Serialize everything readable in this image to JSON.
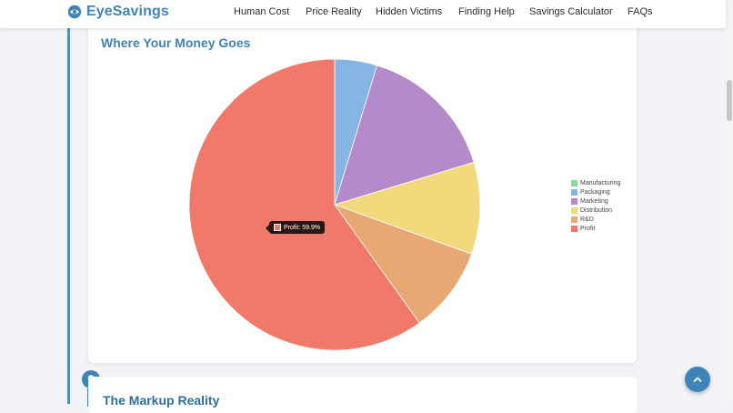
{
  "header": {
    "brand": "EyeSavings",
    "nav": [
      {
        "label": "Human Cost"
      },
      {
        "label": "Price Reality"
      },
      {
        "label": "Hidden Victims"
      },
      {
        "label": "Finding Help"
      },
      {
        "label": "Savings Calculator"
      },
      {
        "label": "FAQs"
      }
    ]
  },
  "section": {
    "title": "Where Your Money Goes",
    "tooltip": "Profit: 59.9%"
  },
  "next_section": {
    "title": "The Markup Reality"
  },
  "colors": {
    "accent": "#3f84b8"
  },
  "icons": {
    "brand": "eye-icon",
    "timeline": "lightbulb-icon",
    "back_top": "chevron-up-icon"
  },
  "chart_data": {
    "type": "pie",
    "title": "Where Your Money Goes",
    "categories": [
      "Manufacturing",
      "Packaging",
      "Marketing",
      "Distribution",
      "R&D",
      "Profit"
    ],
    "values": [
      0.0,
      4.7,
      15.6,
      10.2,
      9.6,
      59.9
    ],
    "colors": [
      "#8fd8a4",
      "#86b5e3",
      "#b58acb",
      "#f2d97c",
      "#e7a873",
      "#f07969"
    ],
    "legend": "right"
  }
}
